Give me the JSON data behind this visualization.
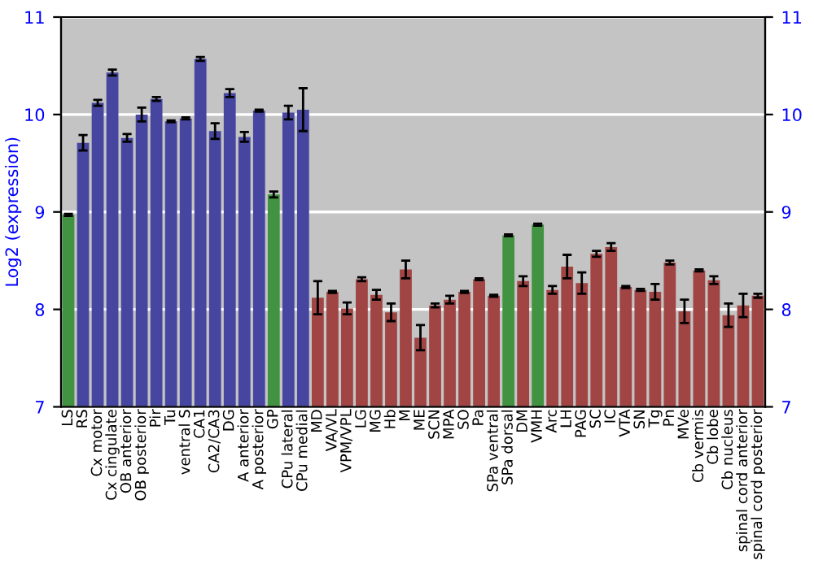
{
  "chart_data": {
    "type": "bar",
    "ylabel": "Log2 (expression)",
    "categories": [
      "LS",
      "RS",
      "Cx motor",
      "Cx cingulate",
      "OB anterior",
      "OB posterior",
      "Pir",
      "Tu",
      "ventral S",
      "CA1",
      "CA2/CA3",
      "DG",
      "A anterior",
      "A posterior",
      "GP",
      "CPu lateral",
      "CPu medial",
      "MD",
      "VA/VL",
      "VPM/VPL",
      "LG",
      "MG",
      "Hb",
      "M",
      "ME",
      "SCN",
      "MPA",
      "SO",
      "Pa",
      "SPa ventral",
      "SPa dorsal",
      "DM",
      "VMH",
      "Arc",
      "LH",
      "PAG",
      "SC",
      "IC",
      "VTA",
      "SN",
      "Tg",
      "Pn",
      "MVe",
      "Cb vermis",
      "Cb lobe",
      "Cb nucleus",
      "spinal cord anterior",
      "spinal cord posterior"
    ],
    "values": [
      8.97,
      9.71,
      10.12,
      10.43,
      9.76,
      10.0,
      10.16,
      9.93,
      9.96,
      10.57,
      9.83,
      10.22,
      9.77,
      10.04,
      9.18,
      10.02,
      10.05,
      8.12,
      8.18,
      8.01,
      8.31,
      8.15,
      7.97,
      8.41,
      7.71,
      8.04,
      8.1,
      8.18,
      8.31,
      8.14,
      8.76,
      8.29,
      8.87,
      8.2,
      8.44,
      8.27,
      8.57,
      8.64,
      8.23,
      8.2,
      8.18,
      8.48,
      7.98,
      8.4,
      8.3,
      7.94,
      8.04,
      8.14
    ],
    "errors": [
      0.01,
      0.08,
      0.03,
      0.03,
      0.04,
      0.07,
      0.02,
      0.01,
      0.01,
      0.02,
      0.08,
      0.04,
      0.05,
      0.01,
      0.03,
      0.07,
      0.22,
      0.17,
      0.01,
      0.06,
      0.02,
      0.05,
      0.09,
      0.09,
      0.13,
      0.02,
      0.04,
      0.01,
      0.01,
      0.01,
      0.01,
      0.05,
      0.01,
      0.04,
      0.12,
      0.11,
      0.03,
      0.04,
      0.01,
      0.01,
      0.08,
      0.02,
      0.12,
      0.01,
      0.04,
      0.12,
      0.12,
      0.02
    ],
    "colors": [
      "#33a033",
      "#3737b0",
      "#3737b0",
      "#3737b0",
      "#3737b0",
      "#3737b0",
      "#3737b0",
      "#3737b0",
      "#3737b0",
      "#3737b0",
      "#3737b0",
      "#3737b0",
      "#3737b0",
      "#3737b0",
      "#33a033",
      "#3737b0",
      "#3737b0",
      "#b03535",
      "#b03535",
      "#b03535",
      "#b03535",
      "#b03535",
      "#b03535",
      "#b03535",
      "#b03535",
      "#b03535",
      "#b03535",
      "#b03535",
      "#b03535",
      "#b03535",
      "#33a033",
      "#b03535",
      "#33a033",
      "#b03535",
      "#b03535",
      "#b03535",
      "#b03535",
      "#b03535",
      "#b03535",
      "#b03535",
      "#b03535",
      "#b03535",
      "#b03535",
      "#b03535",
      "#b03535",
      "#b03535",
      "#b03535",
      "#b03535"
    ],
    "ylim": [
      7,
      11
    ],
    "yticks": [
      7,
      8,
      9,
      10,
      11
    ],
    "y2lim": [
      7,
      11
    ],
    "y2ticks": [
      7,
      8,
      9,
      10,
      11
    ],
    "grid": "y",
    "legend": false
  }
}
